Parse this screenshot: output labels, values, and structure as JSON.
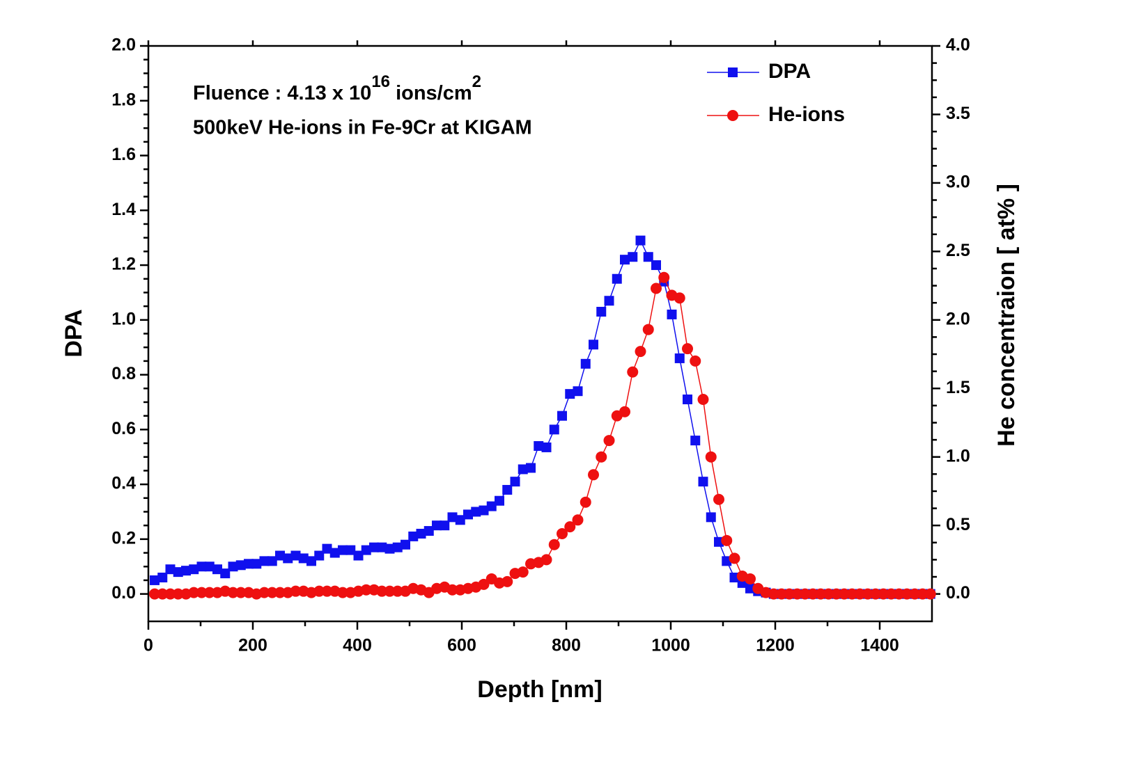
{
  "chart_data": {
    "type": "line",
    "x_label": "Depth [nm]",
    "y_label": "DPA",
    "y2_label": "He concentraion [ at% ]",
    "annotations": {
      "fluence": {
        "text": "Fluence : 4.13 x 10",
        "exponent": "16",
        "unit": " ions/cm",
        "unit_exponent": "2"
      },
      "beam": "500keV He-ions in Fe-9Cr at KIGAM"
    },
    "legend": "top-right",
    "xlim": [
      0,
      1500
    ],
    "xticks": [
      0,
      200,
      400,
      600,
      800,
      1000,
      1200,
      1400
    ],
    "ylim": [
      -0.1,
      2.0
    ],
    "yticks": [
      {
        "value": 0,
        "label": "0.0"
      },
      0.2,
      0.4,
      0.6,
      0.8,
      {
        "value": 1,
        "label": "1.0"
      },
      1.2,
      1.4,
      1.6,
      1.8,
      {
        "value": 2,
        "label": "2.0"
      }
    ],
    "y2lim": [
      -0.2,
      4.0
    ],
    "y2ticks": [
      {
        "value": 0,
        "label": "0.0"
      },
      0.5,
      {
        "value": 1,
        "label": "1.0"
      },
      1.5,
      {
        "value": 2,
        "label": "2.0"
      },
      2.5,
      {
        "value": 3,
        "label": "3.0"
      },
      3.5,
      {
        "value": 4,
        "label": "4.0"
      }
    ],
    "x": [
      12,
      27,
      42,
      57,
      72,
      87,
      102,
      117,
      132,
      147,
      162,
      177,
      192,
      207,
      222,
      237,
      252,
      267,
      282,
      297,
      312,
      327,
      342,
      357,
      372,
      387,
      402,
      417,
      432,
      447,
      462,
      477,
      492,
      507,
      522,
      537,
      552,
      567,
      582,
      597,
      612,
      627,
      642,
      657,
      672,
      687,
      702,
      717,
      732,
      747,
      762,
      777,
      792,
      807,
      822,
      837,
      852,
      867,
      882,
      897,
      912,
      927,
      942,
      957,
      972,
      987,
      1002,
      1017,
      1032,
      1047,
      1062,
      1077,
      1092,
      1107,
      1122,
      1137,
      1152,
      1167,
      1182,
      1197,
      1212,
      1227,
      1242,
      1257,
      1272,
      1287,
      1302,
      1317,
      1332,
      1347,
      1362,
      1377,
      1392,
      1407,
      1422,
      1437,
      1452,
      1467,
      1482,
      1497
    ],
    "series": [
      {
        "name": "DPA",
        "color": "#1010ee",
        "marker": "square",
        "axis": "y",
        "values": [
          0.05,
          0.06,
          0.09,
          0.08,
          0.085,
          0.09,
          0.1,
          0.1,
          0.09,
          0.075,
          0.1,
          0.105,
          0.11,
          0.11,
          0.12,
          0.12,
          0.14,
          0.13,
          0.14,
          0.13,
          0.12,
          0.14,
          0.165,
          0.15,
          0.16,
          0.16,
          0.14,
          0.16,
          0.17,
          0.17,
          0.165,
          0.17,
          0.18,
          0.21,
          0.22,
          0.23,
          0.25,
          0.25,
          0.28,
          0.27,
          0.29,
          0.3,
          0.305,
          0.32,
          0.34,
          0.38,
          0.41,
          0.455,
          0.46,
          0.54,
          0.535,
          0.6,
          0.65,
          0.73,
          0.74,
          0.84,
          0.91,
          1.03,
          1.07,
          1.15,
          1.22,
          1.23,
          1.29,
          1.23,
          1.2,
          1.14,
          1.02,
          0.86,
          0.71,
          0.56,
          0.41,
          0.28,
          0.19,
          0.12,
          0.06,
          0.04,
          0.02,
          0.01,
          0.005,
          0,
          0,
          0,
          0,
          0,
          0,
          0,
          0,
          0,
          0,
          0,
          0,
          0,
          0,
          0,
          0,
          0,
          0,
          0,
          0,
          0
        ]
      },
      {
        "name": "He-ions",
        "color": "#ee1010",
        "marker": "circle",
        "axis": "y2",
        "values": [
          0,
          0,
          0,
          0,
          0,
          0.01,
          0.01,
          0.01,
          0.01,
          0.02,
          0.01,
          0.01,
          0.01,
          0,
          0.01,
          0.01,
          0.01,
          0.01,
          0.02,
          0.02,
          0.01,
          0.02,
          0.02,
          0.02,
          0.01,
          0.01,
          0.02,
          0.03,
          0.03,
          0.02,
          0.02,
          0.02,
          0.02,
          0.04,
          0.03,
          0.01,
          0.04,
          0.05,
          0.03,
          0.03,
          0.04,
          0.05,
          0.07,
          0.11,
          0.08,
          0.09,
          0.15,
          0.16,
          0.22,
          0.23,
          0.25,
          0.36,
          0.44,
          0.49,
          0.54,
          0.67,
          0.87,
          1.0,
          1.12,
          1.3,
          1.33,
          1.62,
          1.77,
          1.93,
          2.23,
          2.31,
          2.18,
          2.16,
          1.79,
          1.7,
          1.42,
          1.0,
          0.69,
          0.39,
          0.26,
          0.13,
          0.11,
          0.04,
          0.01,
          0,
          0,
          0,
          0,
          0,
          0,
          0,
          0,
          0,
          0,
          0,
          0,
          0,
          0,
          0,
          0,
          0,
          0,
          0,
          0,
          0
        ]
      }
    ]
  }
}
